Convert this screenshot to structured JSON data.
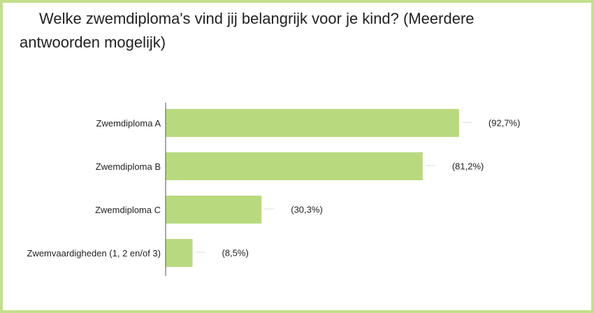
{
  "chart_data": {
    "type": "bar",
    "orientation": "horizontal",
    "title": "Welke zwemdiploma's vind jij belangrijk voor je kind? (Meerdere antwoorden mogelijk)",
    "categories": [
      "Zwemdiploma A",
      "Zwemdiploma B",
      "Zwemdiploma C",
      "Zwemvaardigheden (1, 2 en/of 3)"
    ],
    "values": [
      92.7,
      81.2,
      30.3,
      8.5
    ],
    "value_labels": [
      "(92,7%)",
      "(81,2%)",
      "(30,3%)",
      "(8,5%)"
    ],
    "color": "#b9d97f",
    "xlim": [
      0,
      100
    ]
  }
}
